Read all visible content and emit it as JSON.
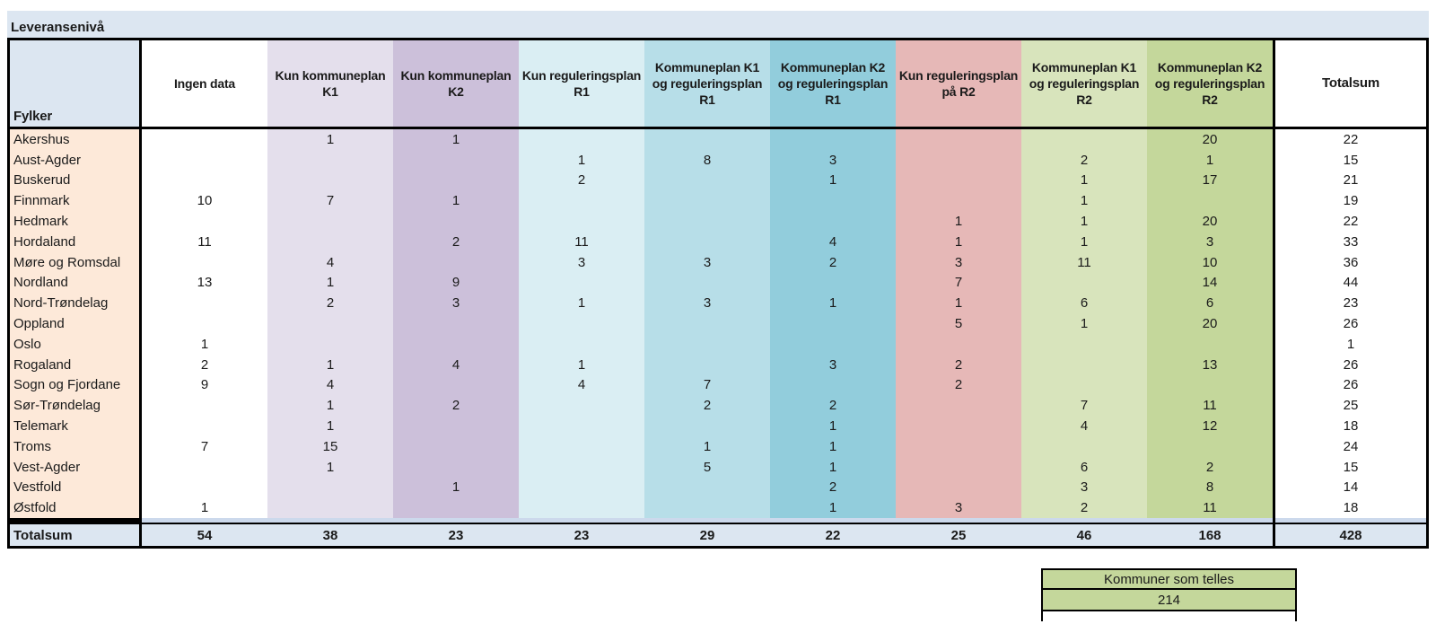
{
  "page_title": "Leveransenivå",
  "colors": {
    "band_blue": "#dce6f1",
    "county_peach": "#fde9d9",
    "totals_row_blue": "#dce6f1",
    "separator_strip_blue": "#ccd9ec",
    "summary_box_green": "#c4d79b",
    "plain_white": "#ffffff"
  },
  "chart_data": {
    "type": "table",
    "title": "Leveransenivå",
    "row_header_label": "Fylker",
    "total_column_label": "Totalsum",
    "columns": [
      {
        "label": "Ingen data",
        "color": "#ffffff"
      },
      {
        "label": "Kun kommuneplan K1",
        "color": "#e4dfec"
      },
      {
        "label": "Kun kommuneplan K2",
        "color": "#ccc0da"
      },
      {
        "label": "Kun reguleringsplan R1",
        "color": "#daeef3"
      },
      {
        "label": "Kommuneplan K1 og reguleringsplan R1",
        "color": "#b7dee8"
      },
      {
        "label": "Kommuneplan K2 og reguleringsplan R1",
        "color": "#92cddc"
      },
      {
        "label": "Kun reguleringsplan på R2",
        "color": "#e6b8b7"
      },
      {
        "label": "Kommuneplan K1 og reguleringsplan R2",
        "color": "#d8e4bc"
      },
      {
        "label": "Kommuneplan K2 og reguleringsplan R2",
        "color": "#c4d79b"
      }
    ],
    "rows": [
      {
        "name": "Akershus",
        "values": [
          null,
          1,
          1,
          null,
          null,
          null,
          null,
          null,
          20
        ],
        "total": 22
      },
      {
        "name": "Aust-Agder",
        "values": [
          null,
          null,
          null,
          1,
          8,
          3,
          null,
          2,
          1
        ],
        "total": 15
      },
      {
        "name": "Buskerud",
        "values": [
          null,
          null,
          null,
          2,
          null,
          1,
          null,
          1,
          17
        ],
        "total": 21
      },
      {
        "name": "Finnmark",
        "values": [
          10,
          7,
          1,
          null,
          null,
          null,
          null,
          1,
          null
        ],
        "total": 19
      },
      {
        "name": "Hedmark",
        "values": [
          null,
          null,
          null,
          null,
          null,
          null,
          1,
          1,
          20
        ],
        "total": 22
      },
      {
        "name": "Hordaland",
        "values": [
          11,
          null,
          2,
          11,
          null,
          4,
          1,
          1,
          3
        ],
        "total": 33
      },
      {
        "name": "Møre og Romsdal",
        "values": [
          null,
          4,
          null,
          3,
          3,
          2,
          3,
          11,
          10
        ],
        "total": 36
      },
      {
        "name": "Nordland",
        "values": [
          13,
          1,
          9,
          null,
          null,
          null,
          7,
          null,
          14
        ],
        "total": 44
      },
      {
        "name": "Nord-Trøndelag",
        "values": [
          null,
          2,
          3,
          1,
          3,
          1,
          1,
          6,
          6
        ],
        "total": 23
      },
      {
        "name": "Oppland",
        "values": [
          null,
          null,
          null,
          null,
          null,
          null,
          5,
          1,
          20
        ],
        "total": 26
      },
      {
        "name": "Oslo",
        "values": [
          1,
          null,
          null,
          null,
          null,
          null,
          null,
          null,
          null
        ],
        "total": 1
      },
      {
        "name": "Rogaland",
        "values": [
          2,
          1,
          4,
          1,
          null,
          3,
          2,
          null,
          13
        ],
        "total": 26
      },
      {
        "name": "Sogn og Fjordane",
        "values": [
          9,
          4,
          null,
          4,
          7,
          null,
          2,
          null,
          null
        ],
        "total": 26
      },
      {
        "name": "Sør-Trøndelag",
        "values": [
          null,
          1,
          2,
          null,
          2,
          2,
          null,
          7,
          11
        ],
        "total": 25
      },
      {
        "name": "Telemark",
        "values": [
          null,
          1,
          null,
          null,
          null,
          1,
          null,
          4,
          12
        ],
        "total": 18
      },
      {
        "name": "Troms",
        "values": [
          7,
          15,
          null,
          null,
          1,
          1,
          null,
          null,
          null
        ],
        "total": 24
      },
      {
        "name": "Vest-Agder",
        "values": [
          null,
          1,
          null,
          null,
          5,
          1,
          null,
          6,
          2
        ],
        "total": 15
      },
      {
        "name": "Vestfold",
        "values": [
          null,
          null,
          1,
          null,
          null,
          2,
          null,
          3,
          8
        ],
        "total": 14
      },
      {
        "name": "Østfold",
        "values": [
          1,
          null,
          null,
          null,
          null,
          1,
          3,
          2,
          11
        ],
        "total": 18
      }
    ],
    "totals_row": {
      "label": "Totalsum",
      "values": [
        54,
        38,
        23,
        23,
        29,
        22,
        25,
        46,
        168
      ],
      "total": 428
    }
  },
  "summary_box": {
    "label": "Kommuner som telles",
    "value": "214"
  }
}
